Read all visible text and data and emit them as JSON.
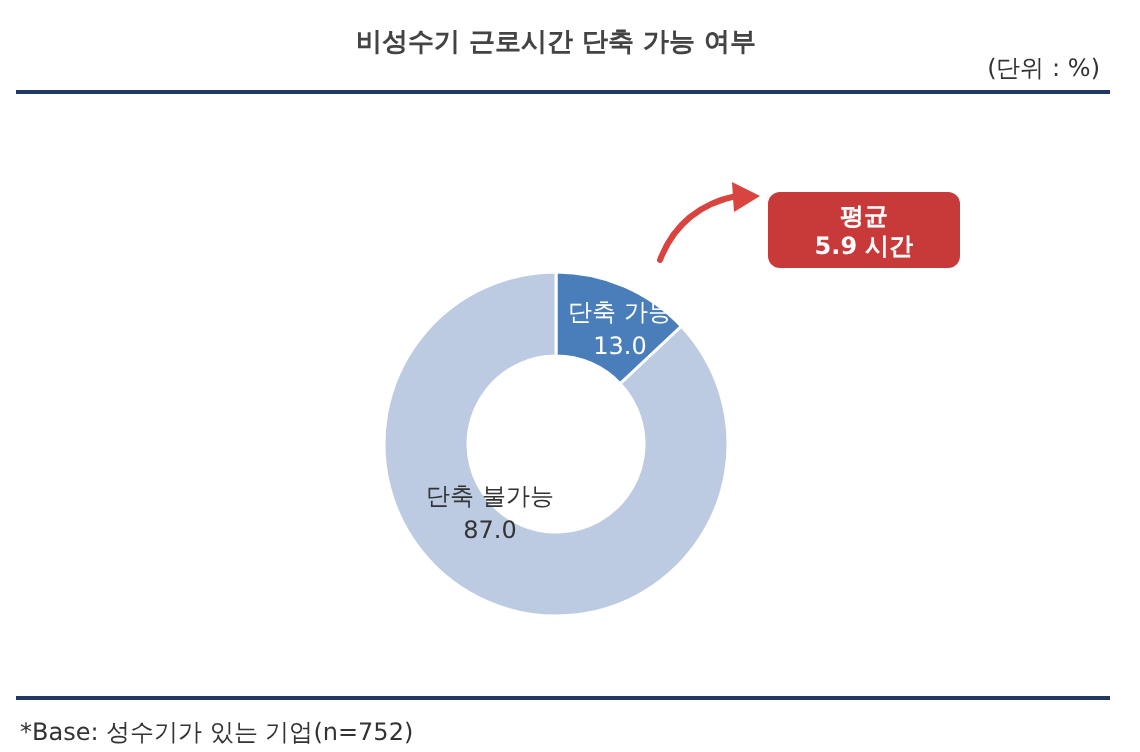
{
  "chart_data": {
    "type": "donut",
    "title": "비성수기 근로시간 단축 가능 여부",
    "categories": [
      "단축 가능",
      "단축 불가능"
    ],
    "values": [
      13.0,
      87.0
    ],
    "value_labels": [
      "13.0",
      "87.0"
    ],
    "colors": [
      "#4a7ebb",
      "#bccbe1"
    ],
    "annotations": [
      "(단위 : %)",
      "평균\n5.9 시간",
      "*Base: 성수기가 있는 기업(n=752)"
    ]
  }
}
